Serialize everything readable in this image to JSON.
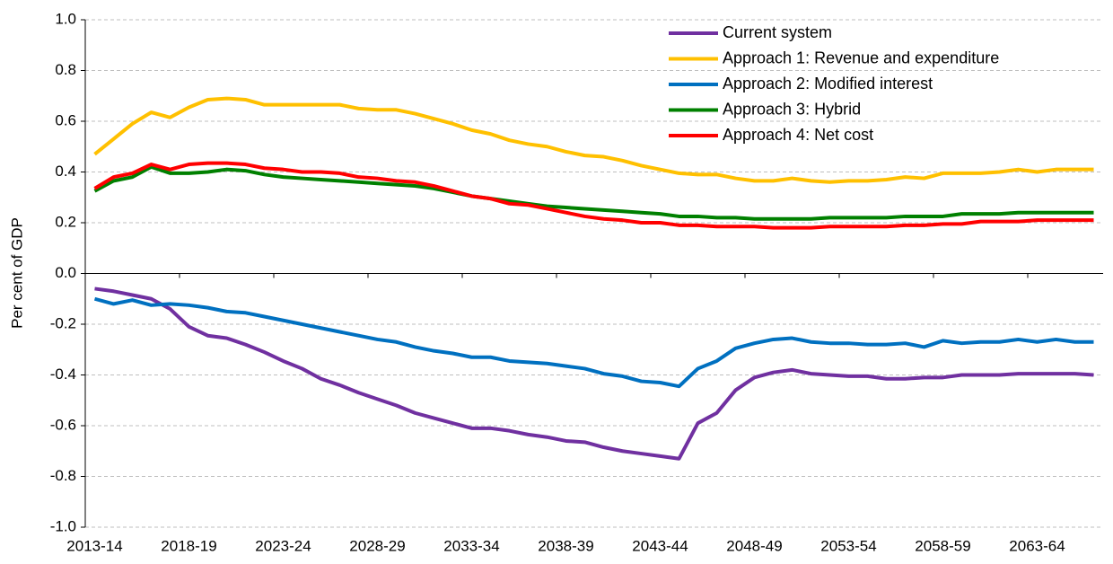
{
  "chart_data": {
    "type": "line",
    "y_label": "Per cent of GDP",
    "categories": [
      "2013-14",
      null,
      null,
      null,
      null,
      "2018-19",
      null,
      null,
      null,
      null,
      "2023-24",
      null,
      null,
      null,
      null,
      "2028-29",
      null,
      null,
      null,
      null,
      "2033-34",
      null,
      null,
      null,
      null,
      "2038-39",
      null,
      null,
      null,
      null,
      "2043-44",
      null,
      null,
      null,
      null,
      "2048-49",
      null,
      null,
      null,
      null,
      "2053-54",
      null,
      null,
      null,
      null,
      "2058-59",
      null,
      null,
      null,
      null,
      "2063-64",
      null,
      null,
      null
    ],
    "series": [
      {
        "name": "Current system",
        "color": "#7030a0",
        "values": [
          -0.06,
          -0.07,
          -0.085,
          -0.1,
          -0.14,
          -0.21,
          -0.245,
          -0.255,
          -0.28,
          -0.31,
          -0.345,
          -0.375,
          -0.415,
          -0.44,
          -0.47,
          -0.495,
          -0.52,
          -0.55,
          -0.57,
          -0.59,
          -0.61,
          -0.61,
          -0.62,
          -0.635,
          -0.645,
          -0.66,
          -0.665,
          -0.685,
          -0.7,
          -0.71,
          -0.72,
          -0.73,
          -0.59,
          -0.55,
          -0.46,
          -0.41,
          -0.39,
          -0.38,
          -0.395,
          -0.4,
          -0.405,
          -0.405,
          -0.415,
          -0.415,
          -0.41,
          -0.41,
          -0.4,
          -0.4,
          -0.4,
          -0.395,
          -0.395,
          -0.395,
          -0.395,
          -0.4
        ]
      },
      {
        "name": "Approach 1: Revenue and expenditure",
        "color": "#ffc000",
        "values": [
          0.47,
          0.53,
          0.59,
          0.635,
          0.615,
          0.655,
          0.685,
          0.69,
          0.685,
          0.665,
          0.665,
          0.665,
          0.665,
          0.665,
          0.65,
          0.645,
          0.645,
          0.63,
          0.61,
          0.59,
          0.565,
          0.55,
          0.525,
          0.51,
          0.5,
          0.48,
          0.465,
          0.46,
          0.445,
          0.425,
          0.41,
          0.395,
          0.39,
          0.39,
          0.375,
          0.365,
          0.365,
          0.375,
          0.365,
          0.36,
          0.365,
          0.365,
          0.37,
          0.38,
          0.375,
          0.395,
          0.395,
          0.395,
          0.4,
          0.41,
          0.4,
          0.41,
          0.41,
          0.41
        ]
      },
      {
        "name": "Approach 2: Modified interest",
        "color": "#0070c0",
        "values": [
          -0.1,
          -0.12,
          -0.105,
          -0.125,
          -0.12,
          -0.125,
          -0.135,
          -0.15,
          -0.155,
          -0.17,
          -0.185,
          -0.2,
          -0.215,
          -0.23,
          -0.245,
          -0.26,
          -0.27,
          -0.29,
          -0.305,
          -0.315,
          -0.33,
          -0.33,
          -0.345,
          -0.35,
          -0.355,
          -0.365,
          -0.375,
          -0.395,
          -0.405,
          -0.425,
          -0.43,
          -0.445,
          -0.375,
          -0.345,
          -0.295,
          -0.275,
          -0.26,
          -0.255,
          -0.27,
          -0.275,
          -0.275,
          -0.28,
          -0.28,
          -0.275,
          -0.29,
          -0.265,
          -0.275,
          -0.27,
          -0.27,
          -0.26,
          -0.27,
          -0.26,
          -0.27,
          -0.27
        ]
      },
      {
        "name": "Approach 3: Hybrid",
        "color": "#008000",
        "values": [
          0.325,
          0.365,
          0.38,
          0.42,
          0.395,
          0.395,
          0.4,
          0.41,
          0.405,
          0.39,
          0.38,
          0.375,
          0.37,
          0.365,
          0.36,
          0.355,
          0.35,
          0.345,
          0.335,
          0.32,
          0.305,
          0.295,
          0.285,
          0.275,
          0.265,
          0.26,
          0.255,
          0.25,
          0.245,
          0.24,
          0.235,
          0.225,
          0.225,
          0.22,
          0.22,
          0.215,
          0.215,
          0.215,
          0.215,
          0.22,
          0.22,
          0.22,
          0.22,
          0.225,
          0.225,
          0.225,
          0.235,
          0.235,
          0.235,
          0.24,
          0.24,
          0.24,
          0.24,
          0.24
        ]
      },
      {
        "name": "Approach 4: Net cost",
        "color": "#ff0000",
        "values": [
          0.335,
          0.38,
          0.395,
          0.43,
          0.41,
          0.43,
          0.435,
          0.435,
          0.43,
          0.415,
          0.41,
          0.4,
          0.4,
          0.395,
          0.38,
          0.375,
          0.365,
          0.36,
          0.345,
          0.325,
          0.305,
          0.295,
          0.275,
          0.27,
          0.255,
          0.24,
          0.225,
          0.215,
          0.21,
          0.2,
          0.2,
          0.19,
          0.19,
          0.185,
          0.185,
          0.185,
          0.18,
          0.18,
          0.18,
          0.185,
          0.185,
          0.185,
          0.185,
          0.19,
          0.19,
          0.195,
          0.195,
          0.205,
          0.205,
          0.205,
          0.21,
          0.21,
          0.21,
          0.21
        ]
      }
    ],
    "ylim": [
      -1,
      1
    ],
    "yticks": [
      {
        "value": -1,
        "label": "-1.0"
      },
      -0.8,
      -0.6,
      -0.4,
      -0.2,
      {
        "value": 0,
        "label": "0.0"
      },
      0.2,
      0.4,
      0.6,
      0.8,
      {
        "value": 1,
        "label": "1.0"
      }
    ],
    "grid": true,
    "legend": "top-right"
  }
}
